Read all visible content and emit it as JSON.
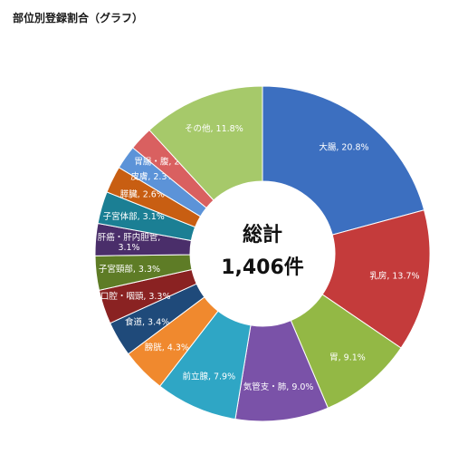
{
  "chart_data": {
    "type": "pie",
    "style": "donut",
    "title": "部位別登録割合（グラフ）",
    "center_text": [
      "総計",
      "1,406件"
    ],
    "slices": [
      {
        "label": "大腸",
        "value": 20.8,
        "display": "大腸, 20.8%",
        "color": "#3c6fc0"
      },
      {
        "label": "乳房",
        "value": 13.7,
        "display": "乳房, 13.7%",
        "color": "#c43b3b"
      },
      {
        "label": "胃",
        "value": 9.1,
        "display": "胃, 9.1%",
        "color": "#93b845"
      },
      {
        "label": "気管支・肺",
        "value": 9.0,
        "display": "気管支・肺, 9.0%",
        "color": "#7a52a8"
      },
      {
        "label": "前立腺",
        "value": 7.9,
        "display": "前立腺, 7.9%",
        "color": "#2fa6c5"
      },
      {
        "label": "膀胱",
        "value": 4.3,
        "display": "膀胱, 4.3%",
        "color": "#f0892e"
      },
      {
        "label": "食道",
        "value": 3.4,
        "display": "食道, 3.4%",
        "color": "#1f4a7a"
      },
      {
        "label": "口腔・咽頭",
        "value": 3.3,
        "display": "口腔・咽頭, 3.3%",
        "color": "#8a2222"
      },
      {
        "label": "子宮頸部",
        "value": 3.3,
        "display": "子宮頸部, 3.3%",
        "color": "#5e7c26"
      },
      {
        "label": "肝癌・肝内胆管",
        "value": 3.1,
        "display": [
          "肝癌・肝内胆管,",
          "3.1%"
        ],
        "color": "#4a2e6a"
      },
      {
        "label": "子宮体部",
        "value": 3.1,
        "display": "子宮体部, 3.1%",
        "color": "#1b7f94"
      },
      {
        "label": "膵臓",
        "value": 2.6,
        "display": "膵臓, 2.6%",
        "color": "#c85e12"
      },
      {
        "label": "皮膚",
        "value": 2.3,
        "display": "皮膚, 2.3%",
        "color": "#5c93d8"
      },
      {
        "label": "胃腸・腹",
        "value": 2.3,
        "display": "胃腸・腹, 2.3%",
        "color": "#d96060"
      },
      {
        "label": "その他",
        "value": 11.8,
        "display": "その他, 11.8%",
        "color": "#a6c96a"
      }
    ]
  }
}
